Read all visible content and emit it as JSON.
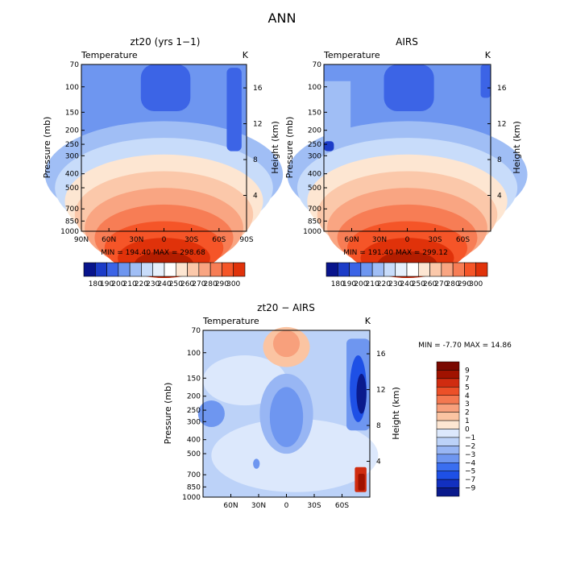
{
  "page_title": "ANN",
  "colors": {
    "temp_scale": [
      "#08148c",
      "#1c3cc8",
      "#3c64e6",
      "#6e96f0",
      "#a0bef5",
      "#c8dcfa",
      "#ffffff",
      "#fde6d2",
      "#fbc8aa",
      "#f9a582",
      "#f77d55",
      "#f55528",
      "#e0320a",
      "#b41e00",
      "#8c0f00"
    ],
    "diff_scale": [
      "#0a1a8c",
      "#1230c0",
      "#1e50e6",
      "#3a6ef0",
      "#6e96f0",
      "#98b6f4",
      "#bcd2f8",
      "#dce8fc",
      "#fde6d2",
      "#fbc4a2",
      "#f8a07c",
      "#f47850",
      "#ec5028",
      "#d02c10",
      "#a01200",
      "#7a0800"
    ]
  },
  "chart_data": [
    {
      "type": "heatmap",
      "title": "zt20 (yrs 1−1)",
      "subtitle_left": "Temperature",
      "subtitle_right": "K",
      "xlabel": "",
      "ylabel": "Pressure (mb)",
      "ylabel_right": "Height (km)",
      "x_ticks": [
        "90N",
        "60N",
        "30N",
        "0",
        "30S",
        "60S",
        "90S"
      ],
      "y_ticks": [
        "70",
        "100",
        "150",
        "200",
        "250",
        "300",
        "400",
        "500",
        "700",
        "850",
        "1000"
      ],
      "y_right_ticks": [
        "4",
        "8",
        "12",
        "16"
      ],
      "minmax": "MIN = 194.40   MAX = 298.68",
      "colorbar_labels": [
        "180",
        "190",
        "200",
        "210",
        "220",
        "230",
        "240",
        "250",
        "260",
        "270",
        "280",
        "290",
        "300"
      ],
      "min": 194.4,
      "max": 298.68
    },
    {
      "type": "heatmap",
      "title": "AIRS",
      "subtitle_left": "Temperature",
      "subtitle_right": "K",
      "xlabel": "",
      "ylabel": "Pressure (mb)",
      "ylabel_right": "Height (km)",
      "x_ticks": [
        "60N",
        "30N",
        "0",
        "30S",
        "60S"
      ],
      "y_ticks": [
        "70",
        "100",
        "150",
        "200",
        "250",
        "300",
        "400",
        "500",
        "700",
        "850",
        "1000"
      ],
      "y_right_ticks": [
        "4",
        "8",
        "12",
        "16"
      ],
      "minmax": "MIN = 191.40   MAX = 299.12",
      "colorbar_labels": [
        "180",
        "190",
        "200",
        "210",
        "220",
        "230",
        "240",
        "250",
        "260",
        "270",
        "280",
        "290",
        "300"
      ],
      "min": 191.4,
      "max": 299.12
    },
    {
      "type": "heatmap",
      "title": "zt20 − AIRS",
      "subtitle_left": "Temperature",
      "subtitle_right": "K",
      "xlabel": "",
      "ylabel": "Pressure (mb)",
      "ylabel_right": "Height (km)",
      "x_ticks": [
        "60N",
        "30N",
        "0",
        "30S",
        "60S"
      ],
      "y_ticks": [
        "70",
        "100",
        "150",
        "200",
        "250",
        "300",
        "400",
        "500",
        "700",
        "850",
        "1000"
      ],
      "y_right_ticks": [
        "4",
        "8",
        "12",
        "16"
      ],
      "minmax": "MIN =   -7.70   MAX =   14.86",
      "colorbar_labels": [
        "9",
        "7",
        "5",
        "4",
        "3",
        "2",
        "1",
        "0",
        "−1",
        "−2",
        "−3",
        "−4",
        "−5",
        "−7",
        "−9"
      ],
      "min": -7.7,
      "max": 14.86
    }
  ]
}
